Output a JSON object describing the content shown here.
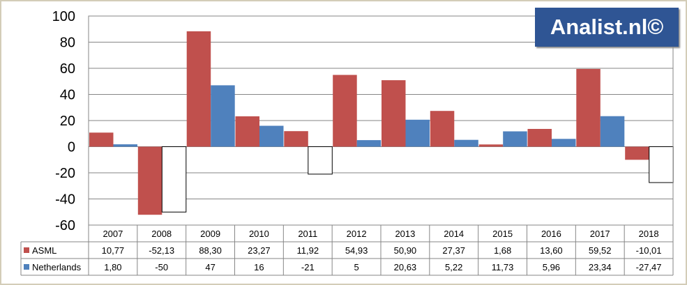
{
  "brand": {
    "label": "Analist.nl©"
  },
  "chart_data": {
    "type": "bar",
    "title": "",
    "xlabel": "",
    "ylabel": "",
    "ylim": [
      -60,
      100
    ],
    "yticks": [
      100,
      80,
      60,
      40,
      20,
      0,
      -20,
      -40,
      -60
    ],
    "grid": true,
    "legend": "data-table rows",
    "categories": [
      "2007",
      "2008",
      "2009",
      "2010",
      "2011",
      "2012",
      "2013",
      "2014",
      "2015",
      "2016",
      "2017",
      "2018"
    ],
    "series": [
      {
        "name": "ASML",
        "color": "#c0504d",
        "values": [
          10.77,
          -52.13,
          88.3,
          23.27,
          11.92,
          54.93,
          50.9,
          27.37,
          1.68,
          13.6,
          59.52,
          -10.01
        ],
        "labels": [
          "10,77",
          "-52,13",
          "88,30",
          "23,27",
          "11,92",
          "54,93",
          "50,90",
          "27,37",
          "1,68",
          "13,60",
          "59,52",
          "-10,01"
        ]
      },
      {
        "name": "Netherlands",
        "color": "#4f81bd",
        "negative_color": "#ffffff",
        "values": [
          1.8,
          -50,
          47,
          16,
          -21,
          5,
          20.63,
          5.22,
          11.73,
          5.96,
          23.34,
          -27.47
        ],
        "labels": [
          "1,80",
          "-50",
          "47",
          "16",
          "-21",
          "5",
          "20,63",
          "5,22",
          "11,73",
          "5,96",
          "23,34",
          "-27,47"
        ]
      }
    ]
  }
}
